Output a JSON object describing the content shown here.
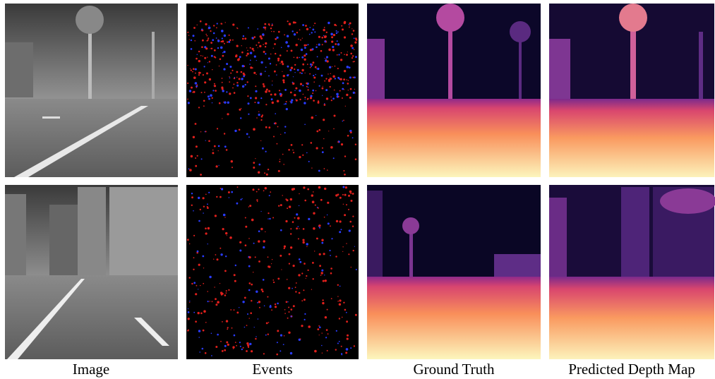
{
  "captions": [
    "Image",
    "Events",
    "Ground Truth",
    "Predicted Depth Map"
  ]
}
